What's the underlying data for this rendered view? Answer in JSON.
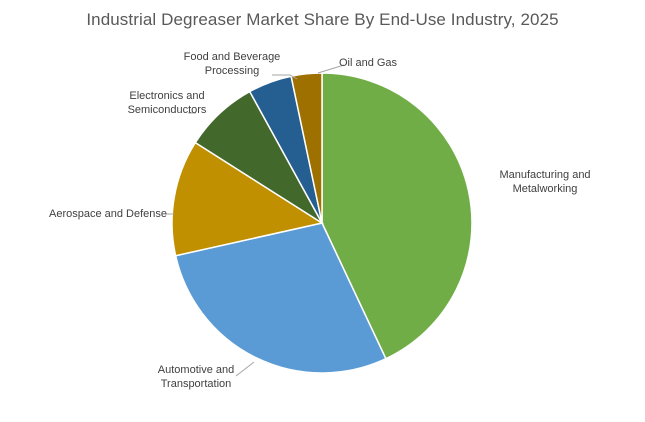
{
  "chart_data": {
    "type": "pie",
    "title": "Industrial Degreaser Market Share By End-Use Industry, 2025",
    "unit": "% share (estimated)",
    "start_angle_deg": 0,
    "direction": "clockwise",
    "legend": "none (category labels placed outside slices)",
    "slices": [
      {
        "label": "Manufacturing and Metalworking",
        "lines": [
          "Manufacturing and",
          "Metalworking"
        ],
        "value": 43.0,
        "color": "#70AD47"
      },
      {
        "label": "Automotive and Transportation",
        "lines": [
          "Automotive and",
          "Transportation"
        ],
        "value": 28.5,
        "color": "#5B9BD5"
      },
      {
        "label": "Aerospace and Defense",
        "lines": [
          "Aerospace and Defense"
        ],
        "value": 12.5,
        "color": "#C09000"
      },
      {
        "label": "Electronics and Semiconductors",
        "lines": [
          "Electronics and",
          "Semiconductors"
        ],
        "value": 8.0,
        "color": "#43682B"
      },
      {
        "label": "Food and Beverage Processing",
        "lines": [
          "Food and Beverage",
          "Processing"
        ],
        "value": 4.7,
        "color": "#255E91"
      },
      {
        "label": "Oil and Gas",
        "lines": [
          "Oil and Gas"
        ],
        "value": 3.3,
        "color": "#9E7000"
      }
    ]
  }
}
